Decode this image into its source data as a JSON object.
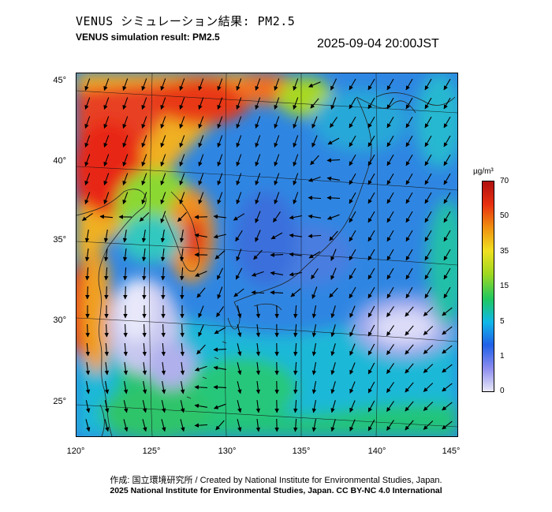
{
  "title_ja": "VENUS シミュレーション結果: PM2.5",
  "title_en": "VENUS simulation result: PM2.5",
  "datetime": "2025-09-04 20:00JST",
  "map": {
    "lat_ticks": [
      "45°",
      "40°",
      "35°",
      "30°",
      "25°"
    ],
    "lon_ticks": [
      "120°",
      "125°",
      "130°",
      "135°",
      "140°",
      "145°"
    ]
  },
  "colorbar": {
    "unit": "µg/m³",
    "labels": [
      "70",
      "50",
      "35",
      "15",
      "5",
      "1",
      "0"
    ],
    "colors": [
      "#e8e8f8",
      "#8c8cf0",
      "#2060e8",
      "#10b8e8",
      "#20c860",
      "#a0d820",
      "#f0e020",
      "#f09010",
      "#e83010",
      "#b01010"
    ]
  },
  "credits": {
    "line1": "作成: 国立環境研究所 / Created by National Institute for Environmental Studies, Japan.",
    "line2": "2025 National Institute for Environmental Studies, Japan. CC BY-NC 4.0 International"
  }
}
